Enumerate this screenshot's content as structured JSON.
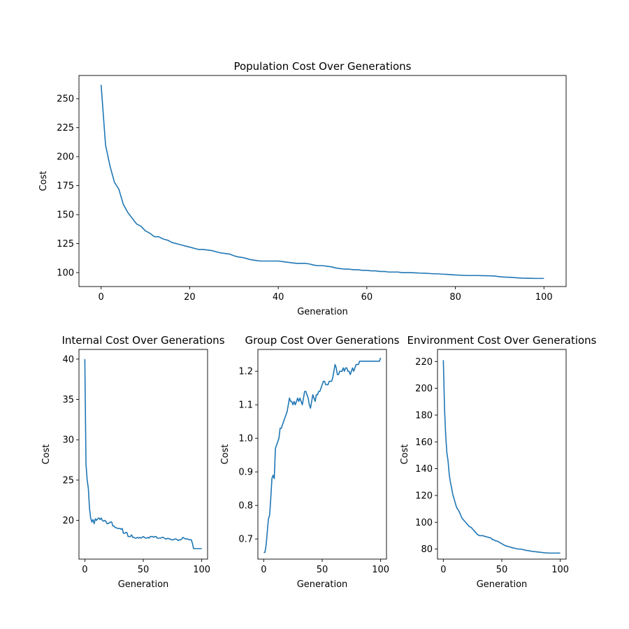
{
  "colors": {
    "line": "#1f77b4",
    "axes": "#000000",
    "background": "#ffffff"
  },
  "chart_data": [
    {
      "type": "line",
      "title": "Population Cost Over Generations",
      "xlabel": "Generation",
      "ylabel": "Cost",
      "xlim": [
        -5,
        105
      ],
      "ylim": [
        88,
        270
      ],
      "xticks": [
        0,
        20,
        40,
        60,
        80,
        100
      ],
      "yticks": [
        100,
        125,
        150,
        175,
        200,
        225,
        250
      ],
      "grid": false,
      "x": [
        0,
        1,
        2,
        3,
        4,
        5,
        6,
        7,
        8,
        9,
        10,
        11,
        12,
        13,
        14,
        15,
        16,
        17,
        18,
        19,
        20,
        21,
        22,
        23,
        24,
        25,
        26,
        27,
        28,
        29,
        30,
        31,
        32,
        33,
        34,
        35,
        36,
        37,
        38,
        39,
        40,
        41,
        42,
        43,
        44,
        45,
        46,
        47,
        48,
        49,
        50,
        51,
        52,
        53,
        54,
        55,
        56,
        57,
        58,
        59,
        60,
        61,
        62,
        63,
        64,
        65,
        66,
        67,
        68,
        69,
        70,
        71,
        72,
        73,
        74,
        75,
        76,
        77,
        78,
        79,
        80,
        81,
        82,
        83,
        84,
        85,
        86,
        87,
        88,
        89,
        90,
        91,
        92,
        93,
        94,
        95,
        96,
        97,
        98,
        99,
        100
      ],
      "y": [
        262,
        210,
        192,
        178,
        172,
        159,
        152,
        147,
        142,
        140,
        136,
        134,
        131,
        131,
        129,
        128,
        126,
        125,
        124,
        123,
        122,
        121,
        120,
        120,
        119.5,
        119,
        118,
        117,
        116.5,
        116,
        114.5,
        113.5,
        113,
        112,
        111,
        110.5,
        110,
        110,
        110,
        110,
        110,
        109.5,
        109,
        108.5,
        108,
        108,
        108,
        107.5,
        106.5,
        106,
        106,
        105.5,
        105,
        104,
        103.5,
        103,
        103,
        102.5,
        102.5,
        102,
        102,
        101.5,
        101.5,
        101,
        101,
        100.5,
        100.5,
        100.5,
        100,
        100,
        100,
        99.8,
        99.6,
        99.5,
        99.3,
        99,
        99,
        98.7,
        98.5,
        98.3,
        98,
        97.8,
        97.6,
        97.5,
        97.5,
        97.5,
        97.4,
        97.3,
        97.2,
        97,
        96.5,
        96.2,
        96,
        95.8,
        95.5,
        95.3,
        95.2,
        95.1,
        95,
        95,
        95
      ]
    },
    {
      "type": "line",
      "title": "Internal Cost Over Generations",
      "xlabel": "Generation",
      "ylabel": "Cost",
      "xlim": [
        -5,
        105
      ],
      "ylim": [
        15.2,
        41.2
      ],
      "xticks": [
        0,
        50,
        100
      ],
      "yticks": [
        20,
        25,
        30,
        35,
        40
      ],
      "grid": false,
      "x": [
        0,
        1,
        2,
        3,
        4,
        5,
        6,
        7,
        8,
        9,
        10,
        11,
        12,
        13,
        14,
        15,
        16,
        17,
        18,
        19,
        20,
        21,
        22,
        23,
        24,
        25,
        26,
        27,
        28,
        29,
        30,
        31,
        32,
        33,
        34,
        35,
        36,
        37,
        38,
        39,
        40,
        41,
        42,
        43,
        44,
        45,
        46,
        47,
        48,
        49,
        50,
        51,
        52,
        53,
        54,
        55,
        56,
        57,
        58,
        59,
        60,
        61,
        62,
        63,
        64,
        65,
        66,
        67,
        68,
        69,
        70,
        71,
        72,
        73,
        74,
        75,
        76,
        77,
        78,
        79,
        80,
        81,
        82,
        83,
        84,
        85,
        86,
        87,
        88,
        89,
        90,
        91,
        92,
        93,
        94,
        95,
        96,
        97,
        98,
        99,
        100
      ],
      "y": [
        40,
        27,
        25,
        24,
        21.5,
        20.3,
        19.8,
        20.1,
        19.6,
        20.2,
        20,
        20.2,
        20.3,
        20.1,
        20.3,
        20,
        19.9,
        20,
        19.9,
        19.6,
        19.6,
        19.7,
        19.8,
        19.8,
        19.3,
        19.3,
        19.1,
        19.1,
        19,
        19,
        19,
        18.9,
        19,
        18.4,
        18.4,
        18.5,
        18.5,
        18,
        18,
        18,
        18.2,
        17.9,
        17.9,
        17.8,
        17.8,
        17.9,
        17.8,
        17.9,
        17.8,
        17.9,
        18,
        17.9,
        17.8,
        17.8,
        17.9,
        17.8,
        18,
        18,
        18,
        17.9,
        18,
        18,
        17.8,
        17.8,
        17.8,
        17.8,
        17.9,
        17.9,
        17.8,
        17.7,
        17.7,
        17.8,
        17.7,
        17.7,
        17.6,
        17.6,
        17.6,
        17.7,
        17.7,
        17.6,
        17.5,
        17.6,
        17.6,
        17.7,
        17.9,
        17.8,
        17.7,
        17.7,
        17.7,
        17.6,
        17.6,
        17.6,
        17.2,
        16.5,
        16.5,
        16.5,
        16.5,
        16.5,
        16.5,
        16.5,
        16.5
      ]
    },
    {
      "type": "line",
      "title": "Group Cost Over Generations",
      "xlabel": "Generation",
      "ylabel": "Cost",
      "xlim": [
        -5,
        105
      ],
      "ylim": [
        0.64,
        1.265
      ],
      "xticks": [
        0,
        50,
        100
      ],
      "yticks": [
        0.7,
        0.8,
        0.9,
        1.0,
        1.1,
        1.2
      ],
      "grid": false,
      "x": [
        0,
        1,
        2,
        3,
        4,
        5,
        6,
        7,
        8,
        9,
        10,
        11,
        12,
        13,
        14,
        15,
        16,
        17,
        18,
        19,
        20,
        21,
        22,
        23,
        24,
        25,
        26,
        27,
        28,
        29,
        30,
        31,
        32,
        33,
        34,
        35,
        36,
        37,
        38,
        39,
        40,
        41,
        42,
        43,
        44,
        45,
        46,
        47,
        48,
        49,
        50,
        51,
        52,
        53,
        54,
        55,
        56,
        57,
        58,
        59,
        60,
        61,
        62,
        63,
        64,
        65,
        66,
        67,
        68,
        69,
        70,
        71,
        72,
        73,
        74,
        75,
        76,
        77,
        78,
        79,
        80,
        81,
        82,
        83,
        84,
        85,
        86,
        87,
        88,
        89,
        90,
        91,
        92,
        93,
        94,
        95,
        96,
        97,
        98,
        99,
        100
      ],
      "y": [
        0.66,
        0.66,
        0.68,
        0.72,
        0.76,
        0.77,
        0.82,
        0.88,
        0.89,
        0.88,
        0.97,
        0.98,
        0.99,
        1.0,
        1.03,
        1.03,
        1.04,
        1.05,
        1.06,
        1.07,
        1.08,
        1.1,
        1.12,
        1.11,
        1.11,
        1.1,
        1.11,
        1.1,
        1.11,
        1.12,
        1.11,
        1.12,
        1.11,
        1.1,
        1.12,
        1.14,
        1.14,
        1.13,
        1.12,
        1.1,
        1.09,
        1.11,
        1.13,
        1.12,
        1.11,
        1.13,
        1.13,
        1.14,
        1.14,
        1.15,
        1.16,
        1.17,
        1.17,
        1.16,
        1.16,
        1.16,
        1.17,
        1.17,
        1.17,
        1.18,
        1.2,
        1.22,
        1.21,
        1.19,
        1.19,
        1.2,
        1.2,
        1.2,
        1.21,
        1.2,
        1.21,
        1.21,
        1.2,
        1.2,
        1.19,
        1.2,
        1.21,
        1.2,
        1.21,
        1.22,
        1.22,
        1.22,
        1.23,
        1.23,
        1.23,
        1.23,
        1.23,
        1.23,
        1.23,
        1.23,
        1.23,
        1.23,
        1.23,
        1.23,
        1.23,
        1.23,
        1.23,
        1.23,
        1.23,
        1.23,
        1.24
      ]
    },
    {
      "type": "line",
      "title": "Environment Cost Over Generations",
      "xlabel": "Generation",
      "ylabel": "Cost",
      "xlim": [
        -5,
        105
      ],
      "ylim": [
        72.5,
        229
      ],
      "xticks": [
        0,
        50,
        100
      ],
      "yticks": [
        80,
        100,
        120,
        140,
        160,
        180,
        200,
        220
      ],
      "grid": false,
      "x": [
        0,
        1,
        2,
        3,
        4,
        5,
        6,
        7,
        8,
        9,
        10,
        11,
        12,
        13,
        14,
        15,
        16,
        17,
        18,
        19,
        20,
        21,
        22,
        23,
        24,
        25,
        26,
        27,
        28,
        29,
        30,
        31,
        32,
        33,
        34,
        35,
        36,
        37,
        38,
        39,
        40,
        41,
        42,
        43,
        44,
        45,
        46,
        47,
        48,
        49,
        50,
        51,
        52,
        53,
        54,
        55,
        56,
        57,
        58,
        59,
        60,
        61,
        62,
        63,
        64,
        65,
        66,
        67,
        68,
        69,
        70,
        71,
        72,
        73,
        74,
        75,
        76,
        77,
        78,
        79,
        80,
        81,
        82,
        83,
        84,
        85,
        86,
        87,
        88,
        89,
        90,
        91,
        92,
        93,
        94,
        95,
        96,
        97,
        98,
        99,
        100
      ],
      "y": [
        221,
        185,
        165,
        152,
        146,
        136,
        130,
        126,
        121,
        118,
        115,
        112,
        110,
        109,
        107,
        105,
        103,
        102,
        101,
        100,
        99,
        98,
        97,
        96.5,
        96,
        95,
        94,
        93,
        92,
        91,
        90.5,
        90,
        90,
        90,
        90,
        89.5,
        89.5,
        89,
        89,
        88.5,
        88.5,
        88,
        87,
        87,
        86.5,
        86,
        86,
        85.5,
        85,
        84.5,
        84,
        83.5,
        83,
        82.5,
        82.3,
        82,
        81.8,
        81.5,
        81.2,
        81,
        80.8,
        80.6,
        80.4,
        80.2,
        80.1,
        80,
        80,
        79.8,
        79.6,
        79.4,
        79.2,
        79,
        78.9,
        78.8,
        78.6,
        78.4,
        78.3,
        78.2,
        78.1,
        78,
        77.9,
        77.8,
        77.7,
        77.6,
        77.5,
        77.4,
        77.3,
        77.2,
        77.2,
        77.1,
        77,
        77,
        77,
        77,
        77,
        77,
        77,
        77,
        77,
        77,
        77
      ]
    }
  ]
}
